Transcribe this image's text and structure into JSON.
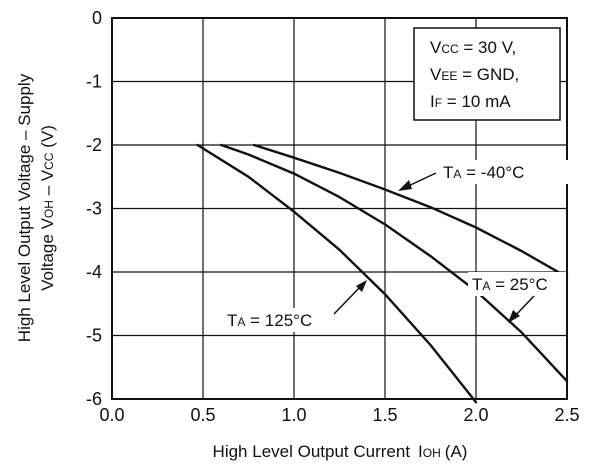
{
  "chart_data": {
    "type": "line",
    "xlim": [
      0,
      2.5
    ],
    "ylim": [
      -6,
      0
    ],
    "x_ticks": [
      "0.0",
      "0.5",
      "1.0",
      "1.5",
      "2.0",
      "2.5"
    ],
    "y_ticks": [
      "0",
      "-1",
      "-2",
      "-3",
      "-4",
      "-5",
      "-6"
    ],
    "grid": true,
    "xlabel": {
      "main": "High Level Output Current",
      "sym": "I",
      "sub": "OH",
      "unit": "(A)"
    },
    "ylabel": {
      "line1": "High Level Output Voltage – Supply",
      "line2_pre": "Voltage V",
      "line2_sub1": "OH",
      "line2_mid": " – V",
      "line2_sub2": "CC",
      "line2_post": " (V)"
    },
    "conditions": [
      {
        "sym": "V",
        "sub": "CC",
        "val": " = 30 V,"
      },
      {
        "sym": "V",
        "sub": "EE",
        "val": " = GND,"
      },
      {
        "sym": "I",
        "sub": "F",
        "val": " = 10 mA"
      }
    ],
    "series": [
      {
        "name": "T_A = -40°C",
        "x": [
          0.78,
          1.0,
          1.25,
          1.5,
          1.75,
          2.0,
          2.25,
          2.5
        ],
        "y": [
          -2.0,
          -2.2,
          -2.44,
          -2.7,
          -2.98,
          -3.3,
          -3.67,
          -4.08
        ]
      },
      {
        "name": "T_A = 25°C",
        "x": [
          0.6,
          0.75,
          1.0,
          1.25,
          1.5,
          1.75,
          2.0,
          2.25,
          2.5
        ],
        "y": [
          -2.0,
          -2.15,
          -2.45,
          -2.82,
          -3.25,
          -3.75,
          -4.3,
          -4.95,
          -5.72
        ]
      },
      {
        "name": "T_A = 125°C",
        "x": [
          0.47,
          0.75,
          1.0,
          1.25,
          1.5,
          1.75,
          2.0
        ],
        "y": [
          -2.0,
          -2.5,
          -3.05,
          -3.65,
          -4.35,
          -5.15,
          -6.05
        ]
      }
    ],
    "labels": [
      {
        "sym": "T",
        "sub": "A",
        "val": " = -40°C"
      },
      {
        "sym": "T",
        "sub": "A",
        "val": " = 25°C"
      },
      {
        "sym": "T",
        "sub": "A",
        "val": " = 125°C"
      }
    ]
  }
}
